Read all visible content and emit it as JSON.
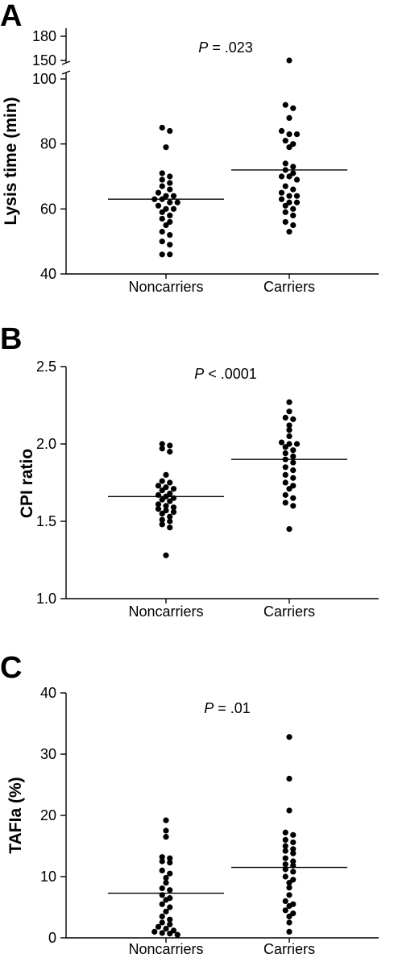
{
  "chart_data": [
    {
      "type": "scatter",
      "panel": "A",
      "ylabel": "Lysis time (min)",
      "yticks": [
        40,
        60,
        80,
        100
      ],
      "broken_axis_ticks": [
        150,
        180
      ],
      "ylim": [
        40,
        180
      ],
      "categories": [
        "Noncarriers",
        "Carriers"
      ],
      "p_prefix": "P",
      "p_value": " = .023",
      "means": [
        63,
        72
      ],
      "series": [
        {
          "values": [
            85,
            84,
            79,
            71,
            70,
            69,
            68,
            67,
            66,
            65,
            64,
            64,
            63,
            63,
            62,
            62,
            61,
            60,
            60,
            59,
            58,
            57,
            56,
            55,
            53,
            52,
            50,
            49,
            46,
            46
          ]
        },
        {
          "values": [
            150,
            92,
            91,
            88,
            84,
            83,
            83,
            81,
            80,
            79,
            74,
            73,
            72,
            71,
            70,
            70,
            69,
            67,
            66,
            65,
            64,
            64,
            63,
            62,
            62,
            61,
            60,
            59,
            58,
            56,
            55,
            53
          ]
        }
      ]
    },
    {
      "type": "scatter",
      "panel": "B",
      "ylabel": "CPI ratio",
      "yticks": [
        1.0,
        1.5,
        2.0,
        2.5
      ],
      "ylim": [
        1.0,
        2.5
      ],
      "categories": [
        "Noncarriers",
        "Carriers"
      ],
      "p_prefix": "P",
      "p_value": " < .0001",
      "means": [
        1.66,
        1.9
      ],
      "series": [
        {
          "values": [
            2.0,
            1.99,
            1.97,
            1.95,
            1.8,
            1.76,
            1.75,
            1.73,
            1.72,
            1.71,
            1.7,
            1.68,
            1.67,
            1.66,
            1.65,
            1.64,
            1.63,
            1.61,
            1.6,
            1.59,
            1.58,
            1.57,
            1.56,
            1.55,
            1.53,
            1.51,
            1.5,
            1.48,
            1.46,
            1.28
          ]
        },
        {
          "values": [
            2.27,
            2.21,
            2.17,
            2.16,
            2.12,
            2.09,
            2.05,
            2.01,
            2.0,
            2.0,
            1.98,
            1.96,
            1.94,
            1.92,
            1.9,
            1.88,
            1.85,
            1.83,
            1.8,
            1.78,
            1.75,
            1.73,
            1.71,
            1.67,
            1.65,
            1.62,
            1.6,
            1.45
          ]
        }
      ]
    },
    {
      "type": "scatter",
      "panel": "C",
      "ylabel": "TAFIa (%)",
      "yticks": [
        0,
        10,
        20,
        30,
        40
      ],
      "ylim": [
        0,
        40
      ],
      "categories": [
        "Noncarriers",
        "Carriers"
      ],
      "p_prefix": "P",
      "p_value": " = .01",
      "means": [
        7.3,
        11.5
      ],
      "series": [
        {
          "values": [
            19.2,
            17.5,
            16.5,
            13.2,
            13.0,
            12.5,
            12.3,
            11.0,
            10.5,
            9.8,
            9.0,
            8.1,
            7.8,
            7.0,
            6.5,
            6.2,
            5.5,
            5.0,
            4.3,
            3.5,
            3.0,
            2.5,
            2.2,
            1.8,
            1.5,
            1.2,
            1.0,
            0.8,
            0.7,
            0.5
          ]
        },
        {
          "values": [
            32.8,
            26.0,
            20.8,
            17.2,
            16.8,
            16.0,
            15.6,
            15.0,
            14.5,
            14.2,
            13.8,
            13.0,
            12.5,
            12.0,
            11.8,
            11.2,
            10.8,
            10.0,
            9.5,
            9.0,
            8.2,
            7.0,
            6.0,
            5.5,
            5.2,
            4.5,
            4.0,
            3.5,
            2.5,
            1.0
          ]
        }
      ]
    }
  ]
}
